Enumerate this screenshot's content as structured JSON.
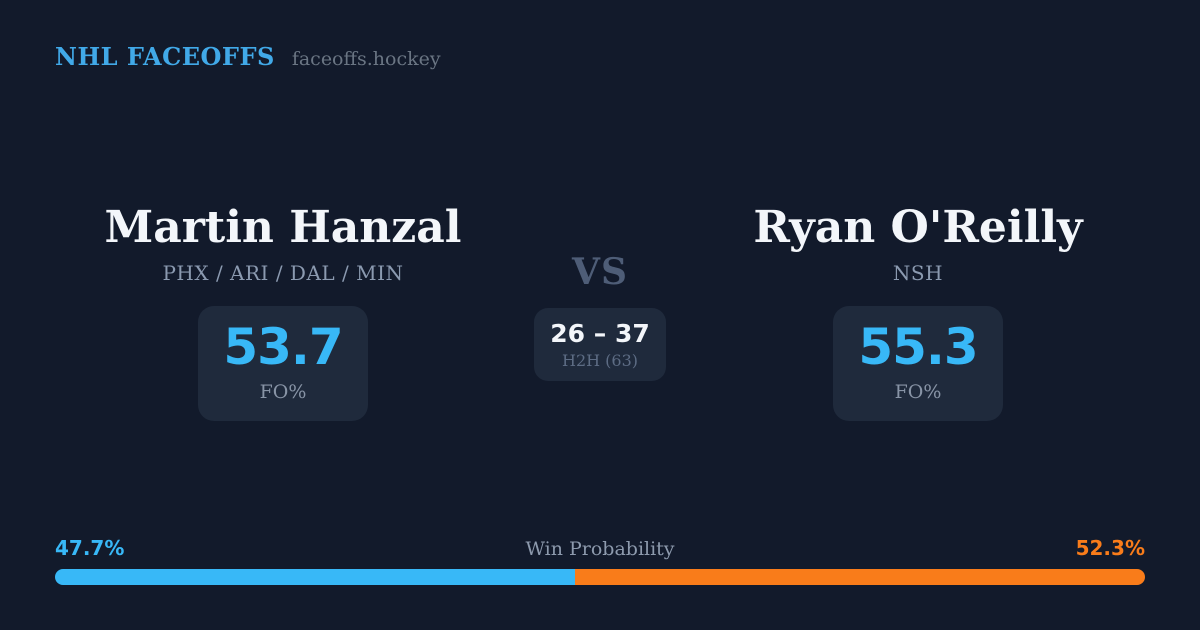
{
  "header": {
    "brand": "NHL FACEOFFS",
    "site": "faceoffs.hockey"
  },
  "matchup": {
    "vs_label": "VS",
    "left": {
      "name": "Martin Hanzal",
      "teams": "PHX / ARI / DAL / MIN",
      "fo_pct": "53.7",
      "fo_label": "FO%"
    },
    "right": {
      "name": "Ryan O'Reilly",
      "teams": "NSH",
      "fo_pct": "55.3",
      "fo_label": "FO%"
    },
    "h2h": {
      "score": "26 – 37",
      "label": "H2H (63)"
    }
  },
  "win_probability": {
    "label": "Win Probability",
    "left_pct_label": "47.7%",
    "right_pct_label": "52.3%",
    "left_value": 47.7,
    "right_value": 52.3
  },
  "colors": {
    "background": "#121a2b",
    "card_background": "#1f2a3c",
    "brand_blue": "#41a9e8",
    "accent_blue": "#38b8f7",
    "accent_orange": "#f97c1a",
    "text_white": "#f3f6fa",
    "text_muted": "#8b9ab0"
  }
}
